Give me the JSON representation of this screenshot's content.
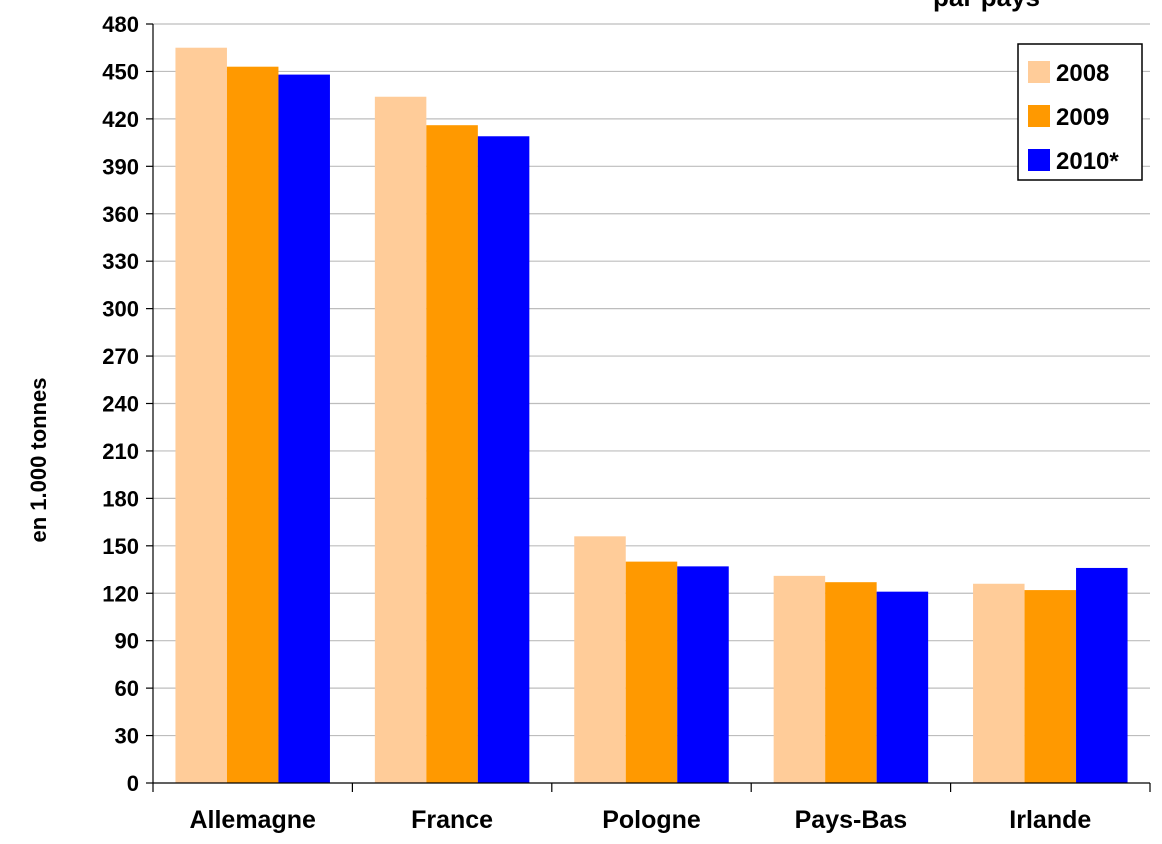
{
  "chart_data": {
    "type": "bar",
    "title": "par pays",
    "ylabel": "en 1.000 tonnes",
    "xlabel": "",
    "ylim": [
      0,
      480
    ],
    "yticks": [
      0,
      30,
      60,
      90,
      120,
      150,
      180,
      210,
      240,
      270,
      300,
      330,
      360,
      390,
      420,
      450,
      480
    ],
    "grid": true,
    "legend_position": "top-right",
    "categories": [
      "Allemagne",
      "France",
      "Pologne",
      "Pays-Bas",
      "Irlande"
    ],
    "series": [
      {
        "name": "2008",
        "color": "#FFCC99",
        "values": [
          465,
          434,
          156,
          131,
          126
        ]
      },
      {
        "name": "2009",
        "color": "#FF9900",
        "values": [
          453,
          416,
          140,
          127,
          122
        ]
      },
      {
        "name": "2010*",
        "color": "#0000FF",
        "values": [
          448,
          409,
          137,
          121,
          136
        ]
      }
    ]
  }
}
